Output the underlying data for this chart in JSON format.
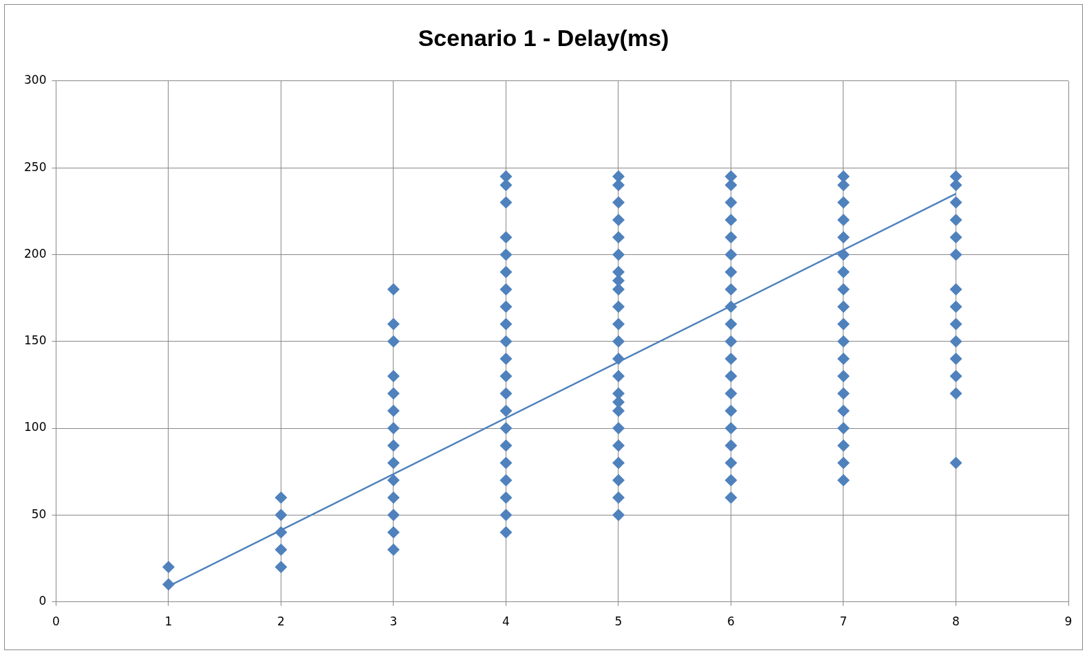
{
  "chart_data": {
    "type": "scatter",
    "title": "Scenario 1 - Delay(ms)",
    "marker": "diamond",
    "grid": true,
    "legend": false,
    "xlim": [
      0,
      9
    ],
    "xticks": [
      0,
      1,
      2,
      3,
      4,
      5,
      6,
      7,
      8,
      9
    ],
    "ylim": [
      0,
      300
    ],
    "yticks": [
      0,
      50,
      100,
      150,
      200,
      250,
      300
    ],
    "series": [
      {
        "color": "#4f81bd",
        "x": [
          1,
          1,
          2,
          2,
          2,
          2,
          2,
          3,
          3,
          3,
          3,
          3,
          3,
          3,
          3,
          3,
          3,
          3,
          3,
          3,
          3,
          4,
          4,
          4,
          4,
          4,
          4,
          4,
          4,
          4,
          4,
          4,
          4,
          4,
          4,
          4,
          4,
          4,
          4,
          4,
          4,
          4,
          5,
          5,
          5,
          5,
          5,
          5,
          5,
          5,
          5,
          5,
          5,
          5,
          5,
          5,
          5,
          5,
          5,
          5,
          5,
          5,
          5,
          5,
          5,
          6,
          6,
          6,
          6,
          6,
          6,
          6,
          6,
          6,
          6,
          6,
          6,
          6,
          6,
          6,
          6,
          6,
          6,
          6,
          6,
          7,
          7,
          7,
          7,
          7,
          7,
          7,
          7,
          7,
          7,
          7,
          7,
          7,
          7,
          7,
          7,
          7,
          7,
          7,
          8,
          8,
          8,
          8,
          8,
          8,
          8,
          8,
          8,
          8,
          8,
          8,
          8,
          8
        ],
        "values": [
          10,
          20,
          20,
          30,
          40,
          50,
          60,
          30,
          40,
          50,
          60,
          70,
          80,
          90,
          100,
          110,
          120,
          130,
          150,
          160,
          180,
          40,
          50,
          60,
          70,
          80,
          90,
          100,
          110,
          120,
          130,
          140,
          150,
          160,
          170,
          180,
          190,
          200,
          210,
          230,
          240,
          245,
          50,
          60,
          70,
          80,
          90,
          100,
          110,
          115,
          120,
          130,
          140,
          150,
          160,
          170,
          180,
          185,
          190,
          200,
          210,
          220,
          230,
          240,
          245,
          60,
          70,
          80,
          90,
          100,
          110,
          120,
          130,
          140,
          150,
          160,
          170,
          180,
          190,
          200,
          210,
          220,
          230,
          240,
          245,
          70,
          80,
          90,
          100,
          110,
          120,
          130,
          140,
          150,
          160,
          170,
          180,
          190,
          200,
          210,
          220,
          230,
          240,
          245,
          80,
          120,
          130,
          140,
          150,
          160,
          170,
          180,
          200,
          210,
          220,
          230,
          240,
          245
        ]
      },
      {
        "type": "line",
        "color": "#4f81bd",
        "marker": "none",
        "x": [
          1,
          8
        ],
        "values": [
          9,
          235
        ]
      }
    ]
  }
}
